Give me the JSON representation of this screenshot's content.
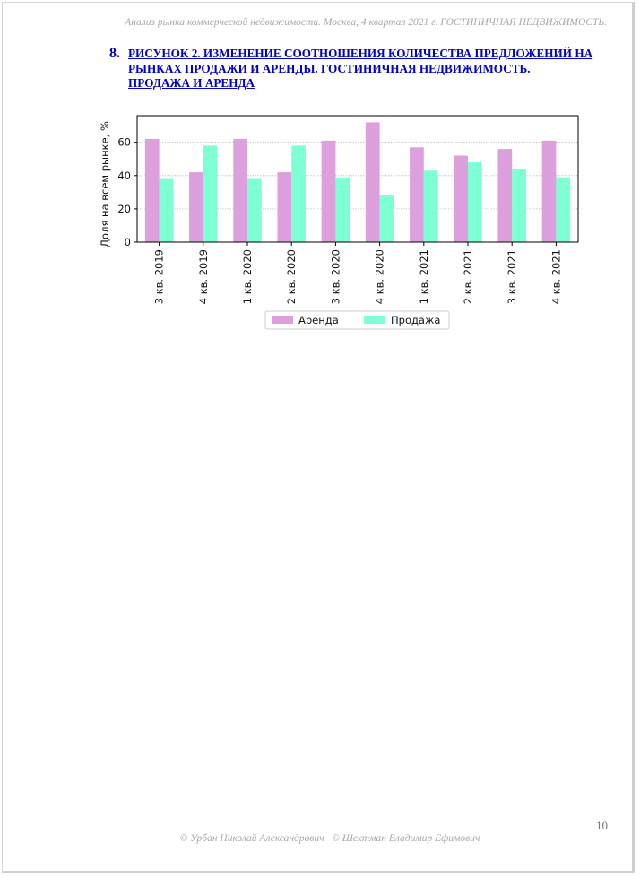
{
  "header": {
    "running_title": "Анализ рынка коммерческой недвижимости.  Москва, 4 квартал 2021 г.   ГОСТИНИЧНАЯ НЕДВИЖИМОСТЬ."
  },
  "figure": {
    "number": "8.",
    "title": "РИСУНОК 2. ИЗМЕНЕНИЕ СООТНОШЕНИЯ КОЛИЧЕСТВА ПРЕДЛОЖЕНИЙ НА РЫНКАХ ПРОДАЖИ И АРЕНДЫ. ГОСТИНИЧНАЯ НЕДВИЖИМОСТЬ. ПРОДАЖА И АРЕНДА"
  },
  "chart_data": {
    "type": "bar",
    "categories": [
      "3 кв. 2019",
      "4 кв. 2019",
      "1 кв. 2020",
      "2 кв. 2020",
      "3 кв. 2020",
      "4 кв. 2020",
      "1 кв. 2021",
      "2 кв. 2021",
      "3 кв. 2021",
      "4 кв. 2021"
    ],
    "series": [
      {
        "name": "Аренда",
        "color": "#dda0dd",
        "values": [
          62,
          42,
          62,
          42,
          61,
          72,
          57,
          52,
          56,
          61
        ]
      },
      {
        "name": "Продажа",
        "color": "#7fffd4",
        "values": [
          38,
          58,
          38,
          58,
          39,
          28,
          43,
          48,
          44,
          39
        ]
      }
    ],
    "ylabel": "Доля на всем рынке, %",
    "xlabel": "",
    "ylim": [
      0,
      76
    ],
    "yticks": [
      0,
      20,
      40,
      60
    ],
    "grid": "horizontal-dotted",
    "legend_position": "bottom-center"
  },
  "footer": {
    "page_number": "10",
    "credits": "© Урбан Николай Александрович   © Шехтман Владимир Ефимович"
  }
}
